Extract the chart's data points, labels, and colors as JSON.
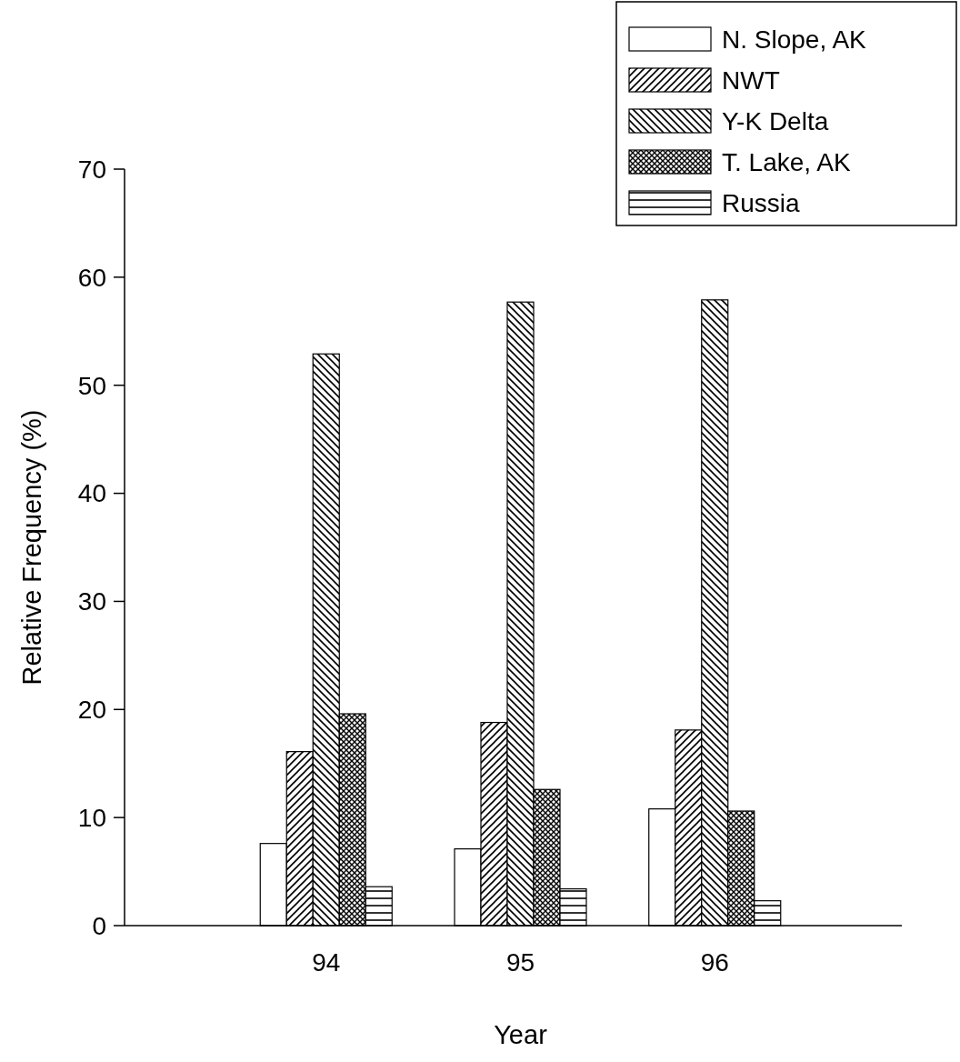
{
  "chart_data": {
    "type": "bar",
    "xlabel": "Year",
    "ylabel": "Relative Frequency (%)",
    "categories": [
      "94",
      "95",
      "96"
    ],
    "series": [
      {
        "name": "N. Slope, AK",
        "color": "#ffffff",
        "values": [
          7.6,
          7.1,
          10.8
        ]
      },
      {
        "name": "NWT",
        "color": "#000000",
        "values": [
          16.1,
          18.8,
          18.1
        ]
      },
      {
        "name": "Y-K Delta",
        "color": "#000000",
        "values": [
          52.9,
          57.7,
          57.9
        ]
      },
      {
        "name": "T. Lake, AK",
        "color": "#000000",
        "values": [
          19.6,
          12.6,
          10.6
        ]
      },
      {
        "name": "Russia",
        "color": "#000000",
        "values": [
          3.6,
          3.4,
          2.3
        ]
      }
    ],
    "ylim": [
      0,
      70
    ],
    "yticks": [
      0,
      10,
      20,
      30,
      40,
      50,
      60,
      70
    ],
    "grid": false,
    "legend": "top right"
  }
}
